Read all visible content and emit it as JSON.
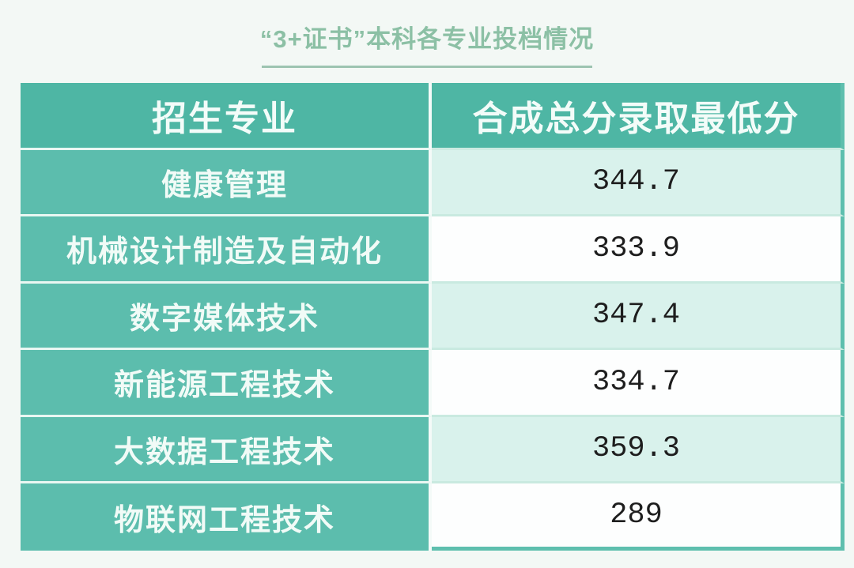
{
  "page": {
    "title": "“3+证书”本科各专业投档情况"
  },
  "table": {
    "headers": {
      "major": "招生专业",
      "score": "合成总分录取最低分"
    },
    "rows": [
      {
        "major": "健康管理",
        "score": "344.7"
      },
      {
        "major": "机械设计制造及自动化",
        "score": "333.9"
      },
      {
        "major": "数字媒体技术",
        "score": "347.4"
      },
      {
        "major": "新能源工程技术",
        "score": "334.7"
      },
      {
        "major": "大数据工程技术",
        "score": "359.3"
      },
      {
        "major": "物联网工程技术",
        "score": "289"
      }
    ]
  },
  "chart_data": {
    "type": "table",
    "title": "“3+证书”本科各专业投档情况",
    "columns": [
      "招生专业",
      "合成总分录取最低分"
    ],
    "rows": [
      [
        "健康管理",
        344.7
      ],
      [
        "机械设计制造及自动化",
        333.9
      ],
      [
        "数字媒体技术",
        347.4
      ],
      [
        "新能源工程技术",
        334.7
      ],
      [
        "大数据工程技术",
        359.3
      ],
      [
        "物联网工程技术",
        289
      ]
    ]
  },
  "colors": {
    "page_background": "#f3f8f5",
    "title_green": "#8cc0a5",
    "header_teal": "#4eb6a4",
    "major_cell_teal": "#5cbdad",
    "mint_cell": "#d9f2ec",
    "white_cell": "#fdfefe",
    "table_border_teal": "#5ebfae",
    "number_text": "#1e1e1e"
  }
}
